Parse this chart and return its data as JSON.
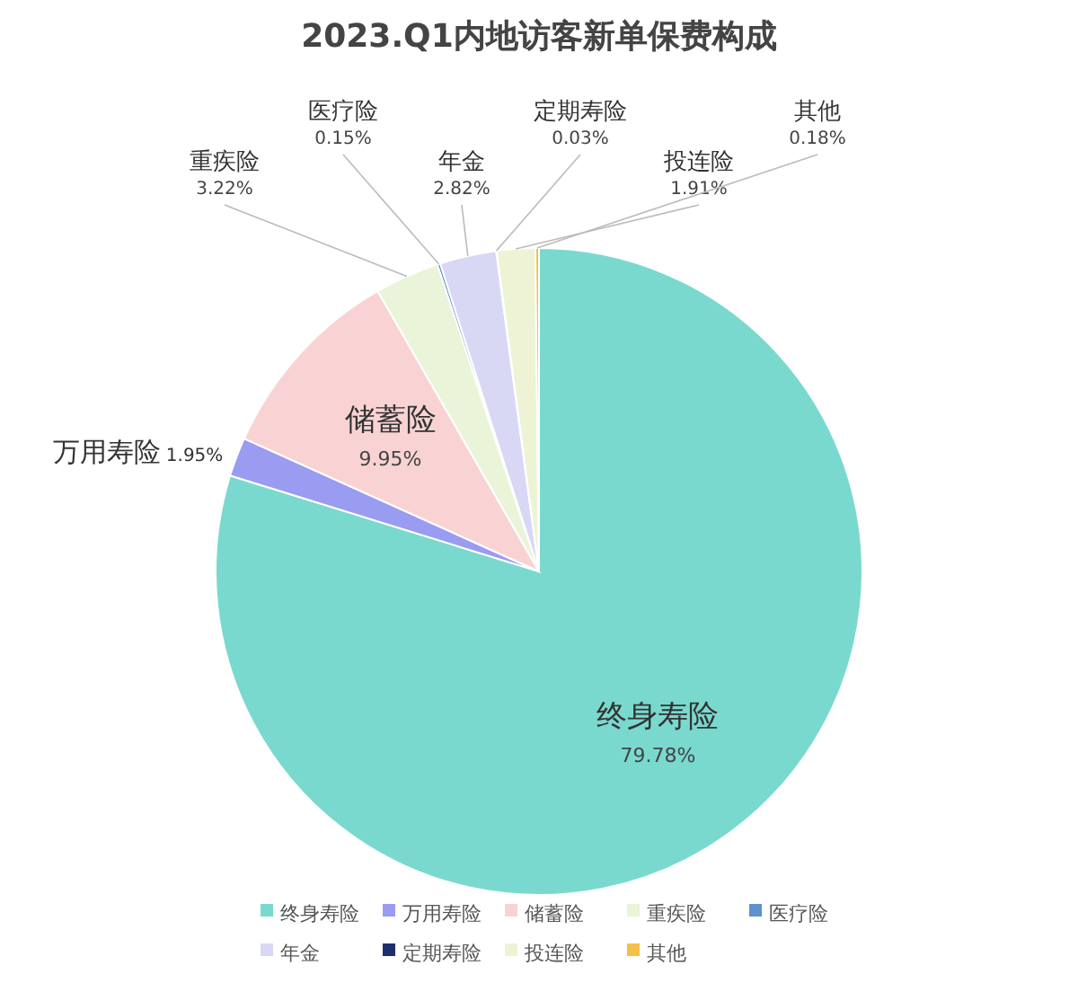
{
  "chart_data": {
    "type": "pie",
    "title": "2023.Q1内地访客新单保费构成",
    "categories": [
      "终身寿险",
      "万用寿险",
      "储蓄险",
      "重疾险",
      "医疗险",
      "年金",
      "定期寿险",
      "投连险",
      "其他"
    ],
    "values": [
      79.78,
      1.95,
      9.95,
      3.22,
      0.15,
      2.82,
      0.03,
      1.91,
      0.18
    ],
    "value_labels": [
      "79.78%",
      "1.95%",
      "9.95%",
      "3.22%",
      "0.15%",
      "2.82%",
      "0.03%",
      "1.91%",
      "0.18%"
    ],
    "colors": [
      "#7ad9cf",
      "#9a9cf2",
      "#f9d3d3",
      "#eaf4d9",
      "#5b93cc",
      "#d8d8f5",
      "#1e2f6e",
      "#eef3d6",
      "#f5c04a"
    ],
    "legend": "bottom"
  }
}
